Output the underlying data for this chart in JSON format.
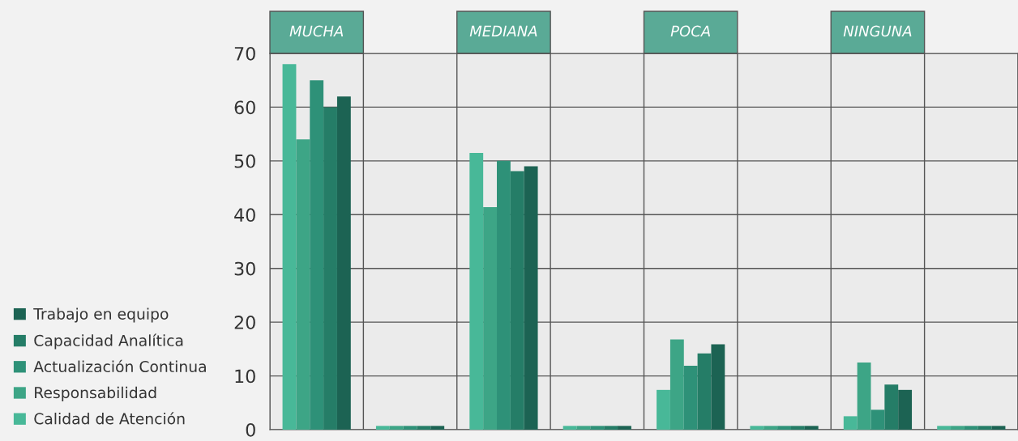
{
  "chart_data": {
    "type": "bar",
    "categories": [
      "MUCHA",
      null,
      "MEDIANA",
      null,
      "POCA",
      null,
      "NINGUNA",
      null
    ],
    "series": [
      {
        "name": "Calidad de Atención",
        "color": "#48b898",
        "values": [
          68,
          0.7,
          51.5,
          0.7,
          7.4,
          0.7,
          2.5,
          0.7
        ]
      },
      {
        "name": "Responsabilidad",
        "color": "#3da586",
        "values": [
          54,
          0.7,
          41.4,
          0.7,
          16.8,
          0.7,
          12.5,
          0.7
        ]
      },
      {
        "name": "Actualización Continua",
        "color": "#2e9178",
        "values": [
          65,
          0.7,
          50,
          0.7,
          11.9,
          0.7,
          3.7,
          0.7
        ]
      },
      {
        "name": "Capacidad Analítica",
        "color": "#257d67",
        "values": [
          60,
          0.7,
          48.1,
          0.7,
          14.2,
          0.7,
          8.4,
          0.7
        ]
      },
      {
        "name": "Trabajo en equipo",
        "color": "#1c6353",
        "values": [
          62,
          0.7,
          49,
          0.7,
          15.9,
          0.7,
          7.4,
          0.7
        ]
      }
    ],
    "ylim": [
      0,
      70
    ],
    "yticks": [
      0,
      10,
      20,
      30,
      40,
      50,
      60,
      70
    ],
    "grid": true,
    "legend": "bottom left"
  }
}
